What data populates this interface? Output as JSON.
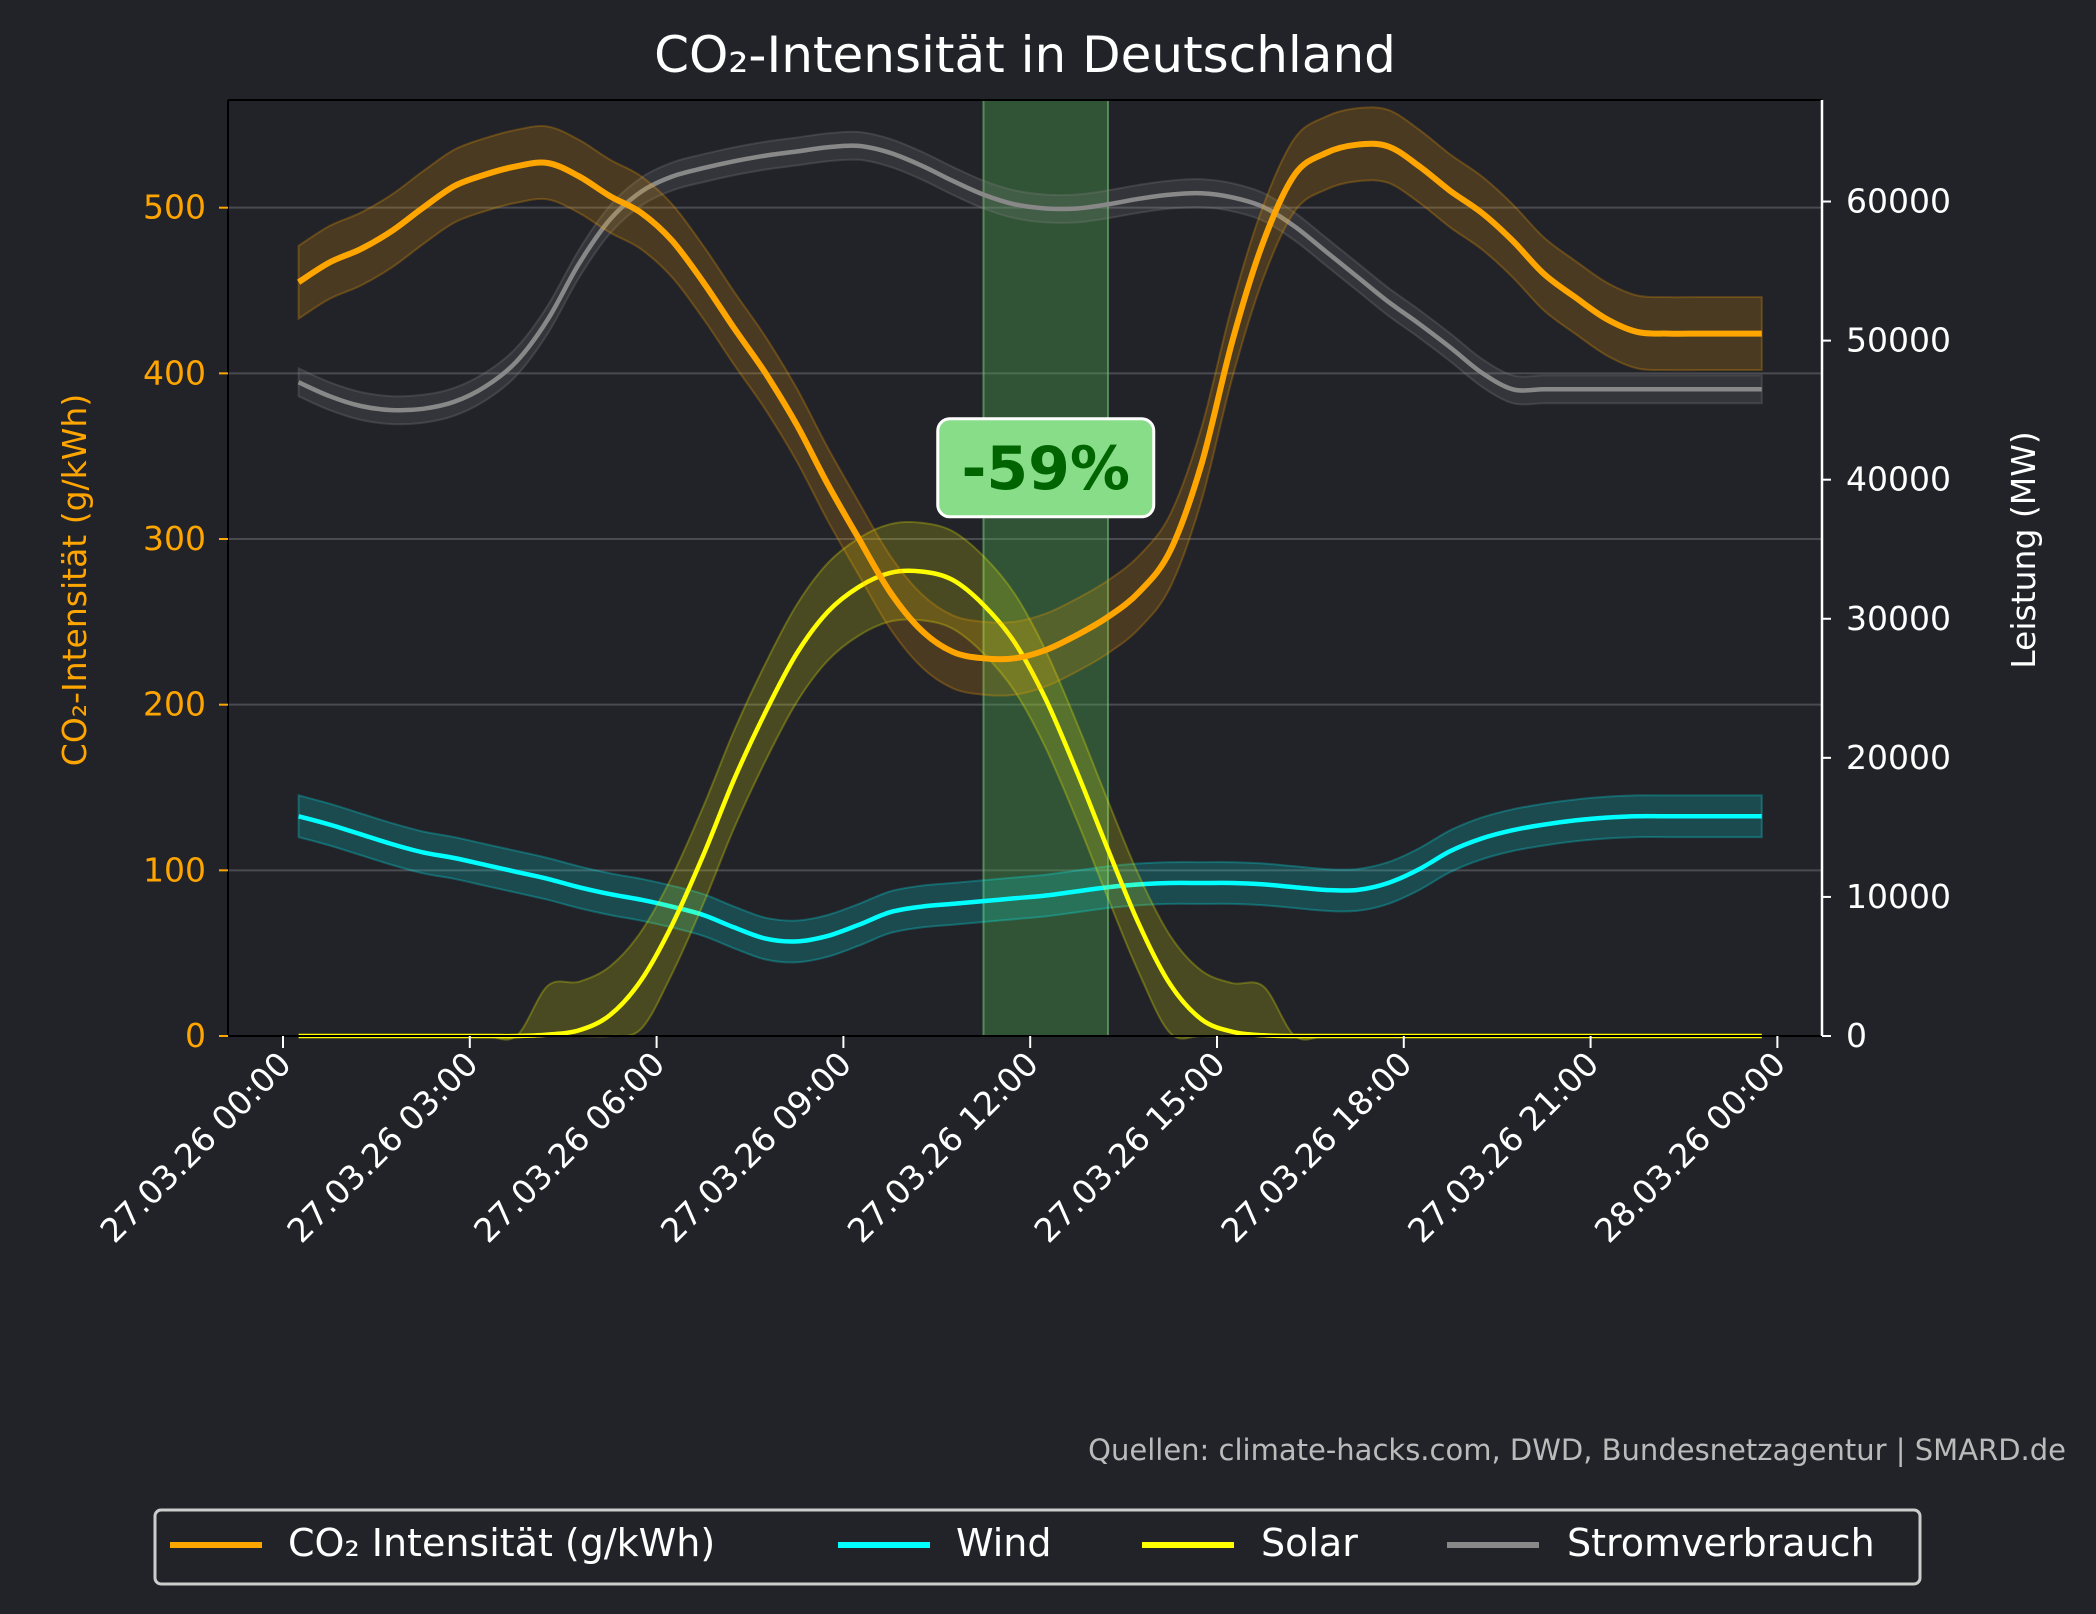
{
  "chart_data": {
    "type": "line",
    "title": "CO₂-Intensität in Deutschland",
    "ylabel_left": "CO₂-Intensität (g/kWh)",
    "ylabel_right": "Leistung (MW)",
    "ylim_left": [
      0,
      565
    ],
    "ylim_right": [
      0,
      67300
    ],
    "xlim": [
      "26.03.26 23:07",
      "28.03.26 00:43"
    ],
    "yticks_left": [
      0,
      100,
      200,
      300,
      400,
      500
    ],
    "yticks_right": [
      0,
      10000,
      20000,
      30000,
      40000,
      50000,
      60000
    ],
    "xticks": [
      "27.03.26 00:00",
      "27.03.26 03:00",
      "27.03.26 06:00",
      "27.03.26 09:00",
      "27.03.26 12:00",
      "27.03.26 15:00",
      "27.03.26 18:00",
      "27.03.26 21:00",
      "28.03.26 00:00"
    ],
    "grid": "horizontal",
    "legend_position": "bottom",
    "highlight": {
      "from": "27.03.26 11:15",
      "to": "27.03.26 13:15",
      "label": "-59%",
      "label_value_left": 343
    },
    "source": "Quellen: climate-hacks.com, DWD, Bundesnetzagentur | SMARD.de",
    "x": [
      "27.03.26 00:15",
      "27.03.26 00:45",
      "27.03.26 01:15",
      "27.03.26 01:45",
      "27.03.26 02:15",
      "27.03.26 02:45",
      "27.03.26 03:15",
      "27.03.26 03:45",
      "27.03.26 04:15",
      "27.03.26 04:45",
      "27.03.26 05:15",
      "27.03.26 05:45",
      "27.03.26 06:15",
      "27.03.26 06:45",
      "27.03.26 07:15",
      "27.03.26 07:45",
      "27.03.26 08:15",
      "27.03.26 08:45",
      "27.03.26 09:15",
      "27.03.26 09:45",
      "27.03.26 10:15",
      "27.03.26 10:45",
      "27.03.26 11:15",
      "27.03.26 11:45",
      "27.03.26 12:15",
      "27.03.26 12:45",
      "27.03.26 13:15",
      "27.03.26 13:45",
      "27.03.26 14:15",
      "27.03.26 14:45",
      "27.03.26 15:15",
      "27.03.26 15:45",
      "27.03.26 16:15",
      "27.03.26 16:45",
      "27.03.26 17:15",
      "27.03.26 17:45",
      "27.03.26 18:15",
      "27.03.26 18:45",
      "27.03.26 19:15",
      "27.03.26 19:45",
      "27.03.26 20:15",
      "27.03.26 20:45",
      "27.03.26 21:15",
      "27.03.26 21:45",
      "27.03.26 22:15",
      "27.03.26 22:45",
      "27.03.26 23:15",
      "27.03.26 23:45"
    ],
    "series": [
      {
        "name": "CO₂ Intensität (g/kWh)",
        "axis": "left",
        "color": "#ffa500",
        "band": 22,
        "values": [
          455,
          467,
          475,
          486,
          500,
          513,
          520,
          525,
          527,
          519,
          507,
          497,
          480,
          455,
          427,
          400,
          369,
          333,
          300,
          268,
          245,
          232,
          228,
          228,
          233,
          242,
          253,
          268,
          293,
          345,
          420,
          480,
          520,
          533,
          538,
          537,
          525,
          510,
          497,
          480,
          460,
          446,
          433,
          425,
          424,
          424,
          424,
          424
        ]
      },
      {
        "name": "Wind",
        "axis": "right",
        "color": "#00ffff",
        "band": 1500,
        "values": [
          15800,
          15200,
          14500,
          13800,
          13200,
          12800,
          12300,
          11800,
          11300,
          10700,
          10200,
          9800,
          9300,
          8700,
          7800,
          7000,
          6800,
          7200,
          8000,
          8900,
          9300,
          9500,
          9700,
          9900,
          10100,
          10400,
          10700,
          10900,
          11000,
          11000,
          11000,
          10900,
          10700,
          10500,
          10500,
          11000,
          12000,
          13300,
          14200,
          14800,
          15200,
          15500,
          15700,
          15800,
          15800,
          15800,
          15800,
          15800
        ]
      },
      {
        "name": "Solar",
        "axis": "right",
        "color": "#ffff00",
        "band": 3500,
        "values": [
          0,
          0,
          0,
          0,
          0,
          0,
          0,
          0,
          100,
          400,
          1500,
          4000,
          8000,
          13000,
          18500,
          23300,
          27500,
          30500,
          32300,
          33300,
          33400,
          32800,
          31000,
          28300,
          24200,
          19000,
          13400,
          8000,
          3700,
          1200,
          300,
          50,
          0,
          0,
          0,
          0,
          0,
          0,
          0,
          0,
          0,
          0,
          0,
          0,
          0,
          0,
          0,
          0
        ]
      },
      {
        "name": "Stromverbrauch",
        "axis": "right",
        "color": "#888888",
        "band": 1000,
        "values": [
          47000,
          46000,
          45300,
          45000,
          45100,
          45600,
          46700,
          48500,
          51500,
          55500,
          58700,
          60700,
          61800,
          62400,
          62900,
          63300,
          63600,
          63900,
          64000,
          63500,
          62600,
          61500,
          60500,
          59800,
          59500,
          59500,
          59800,
          60200,
          60500,
          60600,
          60300,
          59600,
          58200,
          56400,
          54600,
          52800,
          51200,
          49500,
          47700,
          46500,
          46500,
          46500,
          46500,
          46500,
          46500,
          46500,
          46500,
          46500
        ]
      }
    ]
  }
}
